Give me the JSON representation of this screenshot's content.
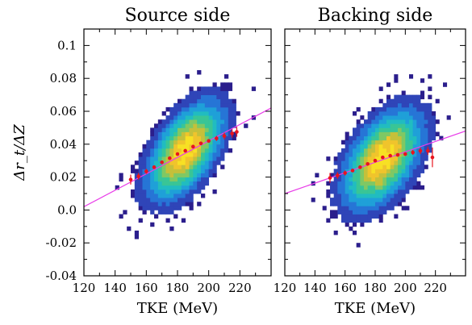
{
  "chart_data": [
    {
      "type": "heatmap",
      "title": "Source side",
      "xlabel": "TKE (MeV)",
      "ylabel": "Δr_t/ΔZ",
      "xlim": [
        120,
        240
      ],
      "ylim": [
        -0.04,
        0.11
      ],
      "xticks": [
        "120",
        "140",
        "160",
        "180",
        "200",
        "220"
      ],
      "yticks": [
        "-0.04",
        "-0.02",
        "0.0",
        "0.02",
        "0.04",
        "0.06",
        "0.08",
        "0.1"
      ],
      "density_center": [
        185,
        0.036
      ],
      "density_spread": [
        14,
        0.017
      ],
      "density_tilt": 0.55,
      "fit_line": {
        "x": [
          120,
          240
        ],
        "y": [
          0.002,
          0.062
        ]
      },
      "profile_points": {
        "x": [
          150,
          155,
          160,
          165,
          170,
          175,
          180,
          185,
          190,
          195,
          200,
          205,
          210,
          215,
          218
        ],
        "y": [
          0.0185,
          0.0205,
          0.0235,
          0.026,
          0.029,
          0.0315,
          0.034,
          0.036,
          0.0385,
          0.0405,
          0.042,
          0.0435,
          0.045,
          0.0465,
          0.0475
        ],
        "err": [
          0.003,
          0.002,
          0.0015,
          0.001,
          0.001,
          0.0008,
          0.0008,
          0.0008,
          0.0008,
          0.001,
          0.001,
          0.0015,
          0.002,
          0.0025,
          0.003
        ]
      }
    },
    {
      "type": "heatmap",
      "title": "Backing side",
      "xlabel": "TKE (MeV)",
      "ylabel": "",
      "xlim": [
        120,
        240
      ],
      "ylim": [
        -0.04,
        0.11
      ],
      "xticks": [
        "120",
        "140",
        "160",
        "180",
        "200",
        "220"
      ],
      "yticks": [],
      "density_center": [
        185,
        0.031
      ],
      "density_spread": [
        15,
        0.017
      ],
      "density_tilt": 0.5,
      "fit_line": {
        "x": [
          120,
          240
        ],
        "y": [
          0.01,
          0.048
        ]
      },
      "profile_points": {
        "x": [
          150,
          155,
          160,
          165,
          170,
          175,
          180,
          185,
          190,
          195,
          200,
          205,
          210,
          215,
          218
        ],
        "y": [
          0.0195,
          0.021,
          0.0225,
          0.024,
          0.026,
          0.028,
          0.03,
          0.032,
          0.033,
          0.0335,
          0.034,
          0.035,
          0.036,
          0.036,
          0.032
        ],
        "err": [
          0.003,
          0.002,
          0.0015,
          0.001,
          0.001,
          0.0008,
          0.0008,
          0.0008,
          0.0008,
          0.001,
          0.001,
          0.0015,
          0.002,
          0.0025,
          0.006
        ]
      }
    }
  ],
  "colors": {
    "colormap": [
      "#2b1e8c",
      "#2f45b8",
      "#2675d6",
      "#1fa0d8",
      "#21bcc0",
      "#39c596",
      "#7fc864",
      "#c5c03a",
      "#f0c42c",
      "#f7e024"
    ],
    "fit_line": "#e83de8",
    "profile_points": "#e8141e"
  }
}
